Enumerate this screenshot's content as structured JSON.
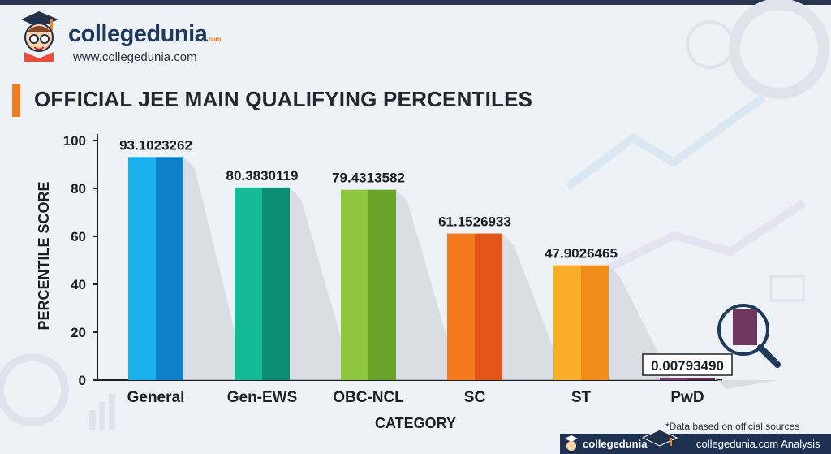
{
  "brand": {
    "name": "collegedunia",
    "name_suffix": ".com",
    "url": "www.collegedunia.com"
  },
  "chart_data": {
    "type": "bar",
    "title": "OFFICIAL JEE MAIN QUALIFYING PERCENTILES",
    "xlabel": "CATEGORY",
    "ylabel": "PERCENTILE SCORE",
    "ylim": [
      0,
      100
    ],
    "yticks": [
      0,
      20,
      40,
      60,
      80,
      100
    ],
    "categories": [
      "General",
      "Gen-EWS",
      "OBC-NCL",
      "SC",
      "ST",
      "PwD"
    ],
    "values": [
      93.1023262,
      80.3830119,
      79.4313582,
      61.1526933,
      47.9026465,
      0.0079349
    ],
    "value_labels": [
      "93.1023262",
      "80.3830119",
      "79.4313582",
      "61.1526933",
      "47.9026465",
      "0.00793490"
    ],
    "bar_colors": [
      [
        "#1ab0ee",
        "#0e7fcb"
      ],
      [
        "#14b995",
        "#0b8d72"
      ],
      [
        "#8ec63f",
        "#6aa32b"
      ],
      [
        "#f47a20",
        "#e25418"
      ],
      [
        "#f9ae2a",
        "#f18d1b"
      ],
      [
        "#7a3e6d",
        "#5d2b54"
      ]
    ],
    "grid": false,
    "legend": "none"
  },
  "footer": {
    "note": "*Data based on official sources",
    "brand": "collegedunia",
    "analysis": "collegedunia.com Analysis"
  },
  "colors": {
    "accent": "#f07c1b",
    "navy": "#1f3150",
    "axis": "#1c1f24"
  }
}
